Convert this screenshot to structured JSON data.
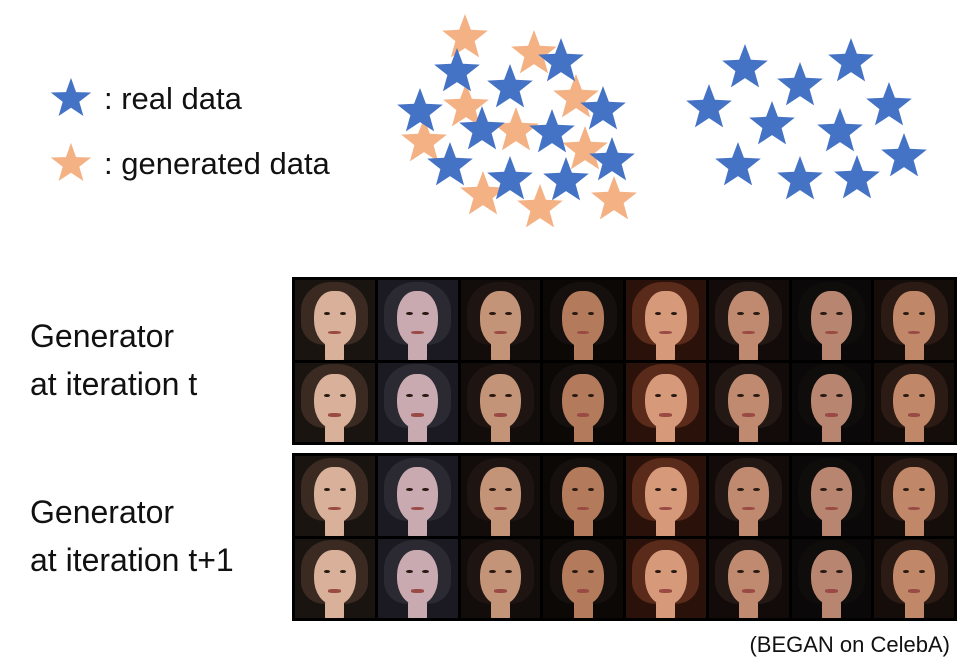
{
  "legend": {
    "real_label": ": real data",
    "generated_label": ": generated data",
    "real_color": "#4472C4",
    "generated_color": "#F4B183"
  },
  "captions": {
    "row1": [
      "Generator",
      "at iteration t"
    ],
    "row2": [
      "Generator",
      "at iteration t+1"
    ]
  },
  "source_note": "(BEGAN on CelebA)",
  "icons": {
    "real": "blue-star-icon",
    "generated": "orange-star-icon",
    "face": "generated-face-image"
  }
}
